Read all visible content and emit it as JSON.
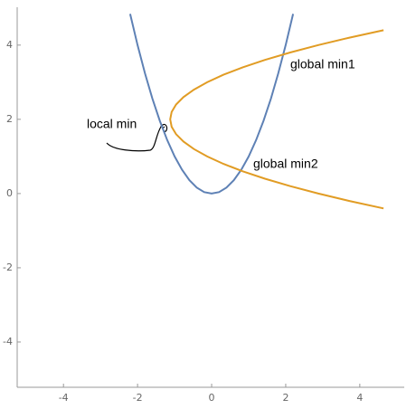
{
  "chart_data": {
    "type": "line",
    "xlim": [
      -5.25,
      5.2
    ],
    "ylim": [
      -5.22,
      5.02
    ],
    "xticks": [
      -4,
      -2,
      0,
      2,
      4
    ],
    "yticks": [
      -4,
      -2,
      0,
      2,
      4
    ],
    "series": [
      {
        "color": "#5e81b5",
        "x": [
          -2.2,
          -2,
          -1.8,
          -1.6,
          -1.4,
          -1.2,
          -1,
          -0.8,
          -0.6,
          -0.4,
          -0.2,
          0,
          0.2,
          0.4,
          0.6,
          0.8,
          1,
          1.2,
          1.4,
          1.6,
          1.8,
          2,
          2.2
        ],
        "values": [
          4.84,
          4,
          3.24,
          2.56,
          1.96,
          1.44,
          1,
          0.64,
          0.36,
          0.16,
          0.04,
          0,
          0.04,
          0.16,
          0.36,
          0.64,
          1,
          1.44,
          1.96,
          2.56,
          3.24,
          4,
          4.84
        ]
      },
      {
        "color": "#e19c24",
        "x": [
          4.64,
          3.72,
          2.88,
          2.12,
          1.44,
          0.84,
          0.32,
          -0.12,
          -0.48,
          -0.76,
          -0.96,
          -1.08,
          -1.12,
          -1.08,
          -0.96,
          -0.76,
          -0.48,
          -0.12,
          0.32,
          0.84,
          1.44,
          2.12,
          2.88,
          3.72,
          4.64
        ],
        "values": [
          -0.4,
          -0.2,
          0,
          0.2,
          0.4,
          0.6,
          0.8,
          1,
          1.2,
          1.4,
          1.6,
          1.8,
          2,
          2.2,
          2.4,
          2.6,
          2.8,
          3,
          3.2,
          3.4,
          3.6,
          3.8,
          4,
          4.2,
          4.4
        ]
      }
    ],
    "annotations": [
      "local min",
      "global min1",
      "global min2"
    ]
  }
}
